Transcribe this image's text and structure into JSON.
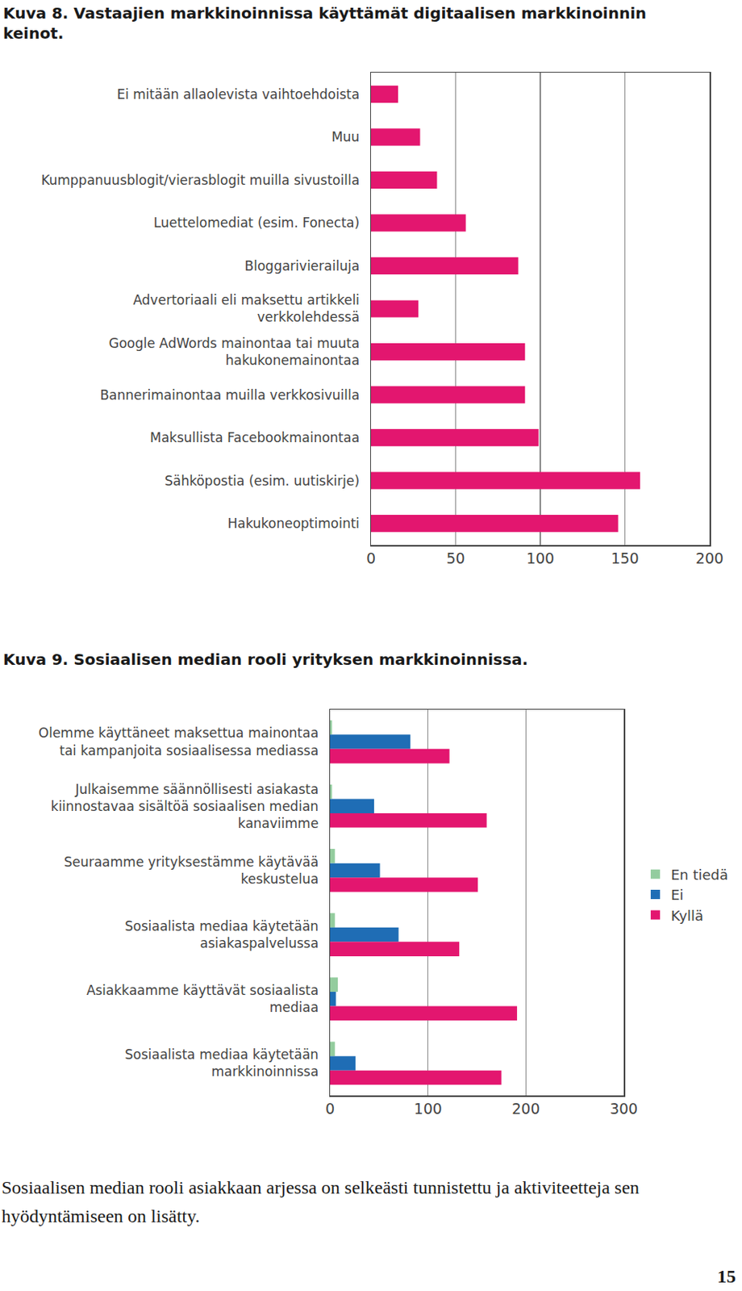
{
  "chart_data": [
    {
      "type": "bar",
      "orientation": "horizontal",
      "title": "Kuva 8. Vastaajien markkinoinnissa käyttämät digitaalisen markkinoinnin keinot.",
      "categories": [
        "Ei mitään allaolevista vaihtoehdoista",
        "Muu",
        "Kumppanuusblogit/vierasblogit muilla sivustoilla",
        "Luettelomediat (esim. Fonecta)",
        "Bloggarivierailuja",
        "Advertoriaali eli maksettu artikkeli\nverkkolehdessä",
        "Google AdWords mainontaa tai muuta\nhakukonemainontaa",
        "Bannerimainontaa muilla verkkosivuilla",
        "Maksullista Facebookmainontaa",
        "Sähköpostia (esim. uutiskirje)",
        "Hakukoneoptimointi"
      ],
      "values": [
        16,
        29,
        39,
        56,
        87,
        28,
        91,
        91,
        99,
        159,
        146
      ],
      "color": "#e3166f",
      "xlim": [
        0,
        200
      ],
      "xticks": [
        0,
        50,
        100,
        150,
        200
      ],
      "grid": true
    },
    {
      "type": "bar",
      "orientation": "horizontal",
      "title": "Kuva 9. Sosiaalisen median rooli yrityksen markkinoinnissa.",
      "categories": [
        "Olemme käyttäneet maksettua mainontaa\ntai kampanjoita sosiaalisessa mediassa",
        "Julkaisemme säännöllisesti asiakasta\nkiinnostavaa sisältöä sosiaalisen median\nkanaviimme",
        "Seuraamme yrityksestämme käytävää\nkeskustelua",
        "Sosiaalista mediaa käytetään\nasiakaspalvelussa",
        "Asiakkaamme käyttävät sosiaalista\nmediaa",
        "Sosiaalista mediaa käytetään\nmarkkinoinnissa"
      ],
      "series": [
        {
          "name": "En tiedä",
          "color": "#93cc9e",
          "values": [
            2,
            2,
            5,
            5,
            8,
            5
          ]
        },
        {
          "name": "Ei",
          "color": "#1f6db5",
          "values": [
            82,
            45,
            51,
            70,
            6,
            26
          ]
        },
        {
          "name": "Kyllä",
          "color": "#e3166f",
          "values": [
            122,
            160,
            151,
            132,
            191,
            175
          ]
        }
      ],
      "xlim": [
        0,
        300
      ],
      "xticks": [
        0,
        100,
        200,
        300
      ],
      "grid": true,
      "legend": "right"
    }
  ],
  "caption": "Sosiaalisen median rooli asiakkaan arjessa on selkeästi tunnistettu ja aktiviteetteja sen hyödyntämiseen on lisätty.",
  "page_number": "15"
}
